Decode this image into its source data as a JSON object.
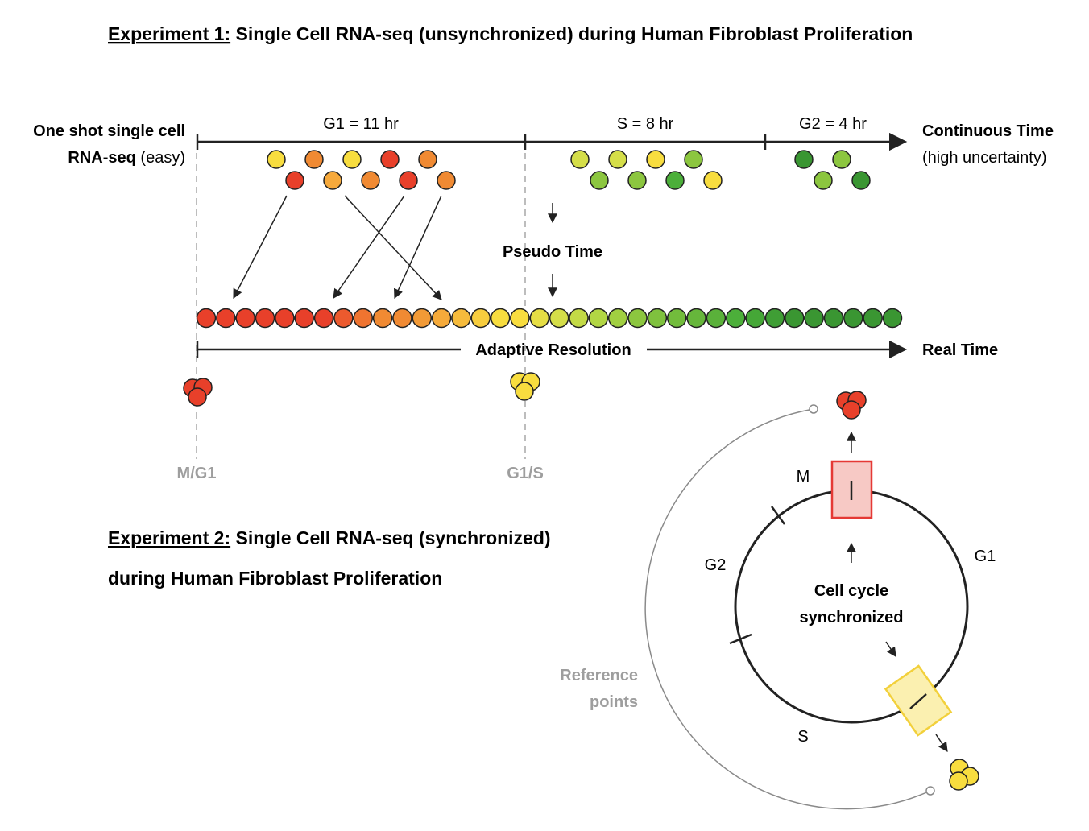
{
  "experiment1": {
    "title_prefix": "Experiment 1:",
    "title_rest": " Single Cell RNA-seq (unsynchronized) during Human Fibroblast Proliferation",
    "left_label_line1": "One shot single cell",
    "left_label_line2_bold": "RNA-seq",
    "left_label_line2_rest": " (easy)",
    "phases": [
      {
        "label": "G1 = 11 hr",
        "hours": 11
      },
      {
        "label": "S = 8 hr",
        "hours": 8
      },
      {
        "label": "G2 = 4 hr",
        "hours": 4
      }
    ],
    "continuous_time": "Continuous Time",
    "continuous_time_note": "(high uncertainty)",
    "pseudo_time": "Pseudo Time",
    "adaptive_resolution": "Adaptive Resolution",
    "real_time": "Real Time",
    "marker_mg1": "M/G1",
    "marker_g1s": "G1/S"
  },
  "experiment2": {
    "title_prefix": "Experiment 2:",
    "title_rest_line1": " Single Cell RNA-seq (synchronized)",
    "title_line2": "during Human Fibroblast Proliferation",
    "phase_M": "M",
    "phase_G1": "G1",
    "phase_G2": "G2",
    "phase_S": "S",
    "center_line1": "Cell cycle",
    "center_line2": "synchronized",
    "reference_line1": "Reference",
    "reference_line2": "points"
  },
  "colors": {
    "red": "#e8402a",
    "orange": "#f08a33",
    "light_orange": "#f6a93b",
    "yellow": "#f8dd3f",
    "yellow_green": "#d5de49",
    "light_green": "#8cc63f",
    "green": "#4caf3a",
    "dark_green": "#3a9632",
    "m_box_fill": "#f7c9c5",
    "m_box_stroke": "#e53935",
    "s_box_fill": "#fbf0b0",
    "s_box_stroke": "#f2d03b"
  },
  "scatter_cells": {
    "g1_top": [
      "yellow",
      "orange",
      "yellow",
      "red",
      "orange"
    ],
    "g1_bottom": [
      "red",
      "light_orange",
      "orange",
      "red",
      "orange"
    ],
    "s_top": [
      "yellow_green",
      "yellow_green",
      "yellow",
      "light_green"
    ],
    "s_bottom": [
      "light_green",
      "light_green",
      "green",
      "yellow"
    ],
    "g2_top": [
      "dark_green",
      "light_green"
    ],
    "g2_bottom": [
      "light_green",
      "dark_green"
    ]
  },
  "pseudotime_row": [
    "#e8402a",
    "#e8402a",
    "#e8402a",
    "#e8402a",
    "#e8402a",
    "#e8402a",
    "#e8402a",
    "#ec5a2e",
    "#ef7430",
    "#f08a33",
    "#f08a33",
    "#f29a36",
    "#f5aa3a",
    "#f6bb3c",
    "#f7cd3e",
    "#f8dd3f",
    "#f8dd3f",
    "#e6de45",
    "#d5de49",
    "#c3da46",
    "#b2d644",
    "#a1cf41",
    "#8cc63f",
    "#7fc13e",
    "#72bc3c",
    "#66b63b",
    "#5ab13a",
    "#4caf3a",
    "#45a737",
    "#3f9e35",
    "#3a9632",
    "#3a9632",
    "#3a9632",
    "#3a9632",
    "#3a9632",
    "#3a9632"
  ]
}
